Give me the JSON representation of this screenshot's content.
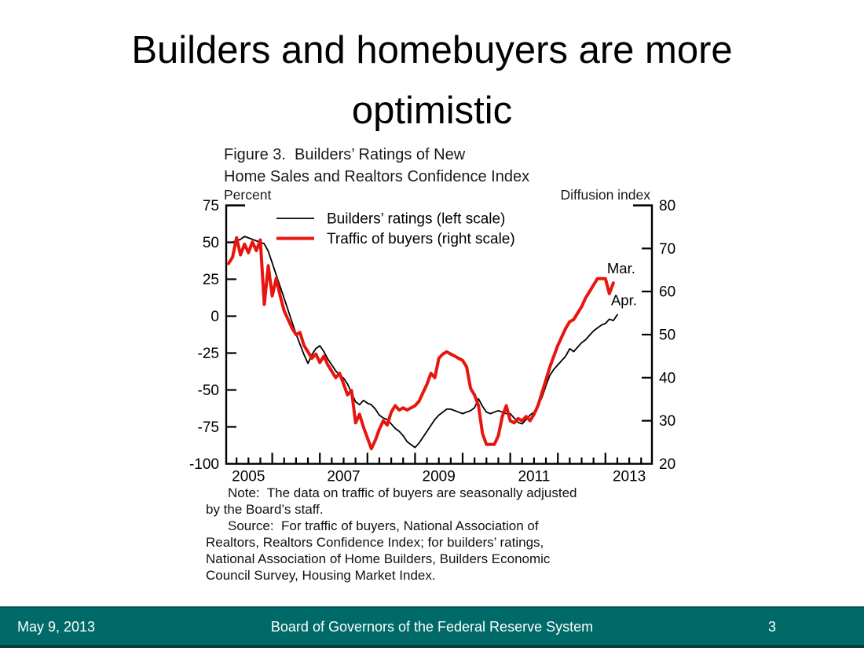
{
  "slide": {
    "title_line1": "Builders and homebuyers are more",
    "title_line2": "optimistic"
  },
  "figure": {
    "title_line1": "Figure 3.  Builders’ Ratings of New",
    "title_line2": "Home Sales and Realtors Confidence Index",
    "left_axis_caption": "Percent",
    "right_axis_caption": "Diffusion index"
  },
  "chart_data": {
    "type": "line",
    "title": "Figure 3. Builders' Ratings of New Home Sales and Realtors Confidence Index",
    "left_axis": {
      "label": "Percent",
      "min": -100,
      "max": 75,
      "ticks": [
        75,
        50,
        25,
        0,
        -25,
        -50,
        -75,
        -100
      ]
    },
    "right_axis": {
      "label": "Diffusion index",
      "min": 20,
      "max": 80,
      "ticks": [
        80,
        70,
        60,
        50,
        40,
        30,
        20
      ]
    },
    "x_axis": {
      "year_labels": [
        "2005",
        "2007",
        "2009",
        "2011",
        "2013"
      ],
      "minor_tick_months": 3,
      "major_tick_months": 12,
      "total_months": 107,
      "range": [
        "2005-01",
        "2013-12"
      ]
    },
    "series": [
      {
        "name": "Builders’ ratings (left scale)",
        "axis": "left",
        "color": "#000000",
        "line_width": 1.8,
        "frequency": "monthly",
        "start": "2005-02",
        "end": "2013-04",
        "values": [
          50,
          50,
          51,
          52,
          54,
          53,
          52,
          51,
          50,
          49,
          44,
          36,
          28,
          20,
          12,
          4,
          -4,
          -12,
          -19,
          -26,
          -32,
          -26,
          -22,
          -20,
          -24,
          -29,
          -33,
          -37,
          -40,
          -42,
          -46,
          -52,
          -58,
          -60,
          -57,
          -59,
          -60,
          -63,
          -67,
          -69,
          -70,
          -73,
          -76,
          -78,
          -81,
          -85,
          -87,
          -89,
          -86,
          -82,
          -78,
          -74,
          -70,
          -67,
          -65,
          -63,
          -63,
          -64,
          -65,
          -66,
          -65,
          -64,
          -62,
          -56,
          -61,
          -65,
          -66,
          -65,
          -64,
          -65,
          -66,
          -66,
          -69,
          -72,
          -73,
          -70,
          -67,
          -65,
          -61,
          -55,
          -47,
          -40,
          -36,
          -33,
          -30,
          -27,
          -22,
          -24,
          -21,
          -18,
          -16,
          -13,
          -10,
          -8,
          -6,
          -5,
          -2,
          -3,
          1
        ]
      },
      {
        "name": "Traffic of buyers (right scale)",
        "axis": "right",
        "color": "#e8150f",
        "line_width": 4,
        "frequency": "monthly",
        "start": "2005-02",
        "end": "2013-03",
        "values": [
          66.5,
          68,
          72.5,
          68.5,
          71,
          69,
          71.5,
          69.5,
          72,
          57,
          66,
          59,
          63,
          59,
          55.5,
          53.5,
          51.5,
          50,
          50.5,
          47.5,
          46,
          44.5,
          45.5,
          43.5,
          45,
          43,
          41.5,
          40,
          41,
          38.5,
          36,
          37,
          29.5,
          31.5,
          28.5,
          26,
          23.5,
          25.5,
          28,
          30,
          29,
          32,
          33.5,
          32.5,
          33,
          32.5,
          33,
          33.5,
          34.5,
          36.5,
          38.5,
          41,
          40,
          44.5,
          45.5,
          46,
          45.5,
          45,
          44.5,
          44,
          42.5,
          37.5,
          36,
          33.5,
          27,
          24.5,
          24.5,
          24.5,
          26.5,
          31,
          33.5,
          30,
          29.5,
          30.5,
          30,
          31,
          30,
          31.5,
          33.5,
          36.5,
          39.5,
          42.5,
          45,
          47.5,
          49.5,
          51.5,
          53,
          53.5,
          55,
          56.5,
          58.5,
          60,
          61.5,
          63,
          63,
          63,
          59.5,
          62
        ]
      }
    ],
    "annotations": [
      {
        "text": "Mar.",
        "date": "2013-03",
        "axis": "right",
        "value": 62
      },
      {
        "text": "Apr.",
        "date": "2013-04",
        "axis": "left",
        "value": 1
      }
    ],
    "legend_position": "top-left-inside",
    "grid": false
  },
  "notes": {
    "lines": [
      "Note:  The data on traffic of buyers are seasonally adjusted",
      "by the Board’s staff.",
      "Source:  For traffic of buyers, National Association of",
      "Realtors, Realtors Confidence Index; for builders’ ratings,",
      "National Association of Home Builders, Builders Economic",
      "Council Survey, Housing Market Index."
    ]
  },
  "footer": {
    "date": "May 9, 2013",
    "center": "Board of Governors of the Federal Reserve System",
    "page": "3",
    "bar_color": "#006a68"
  }
}
